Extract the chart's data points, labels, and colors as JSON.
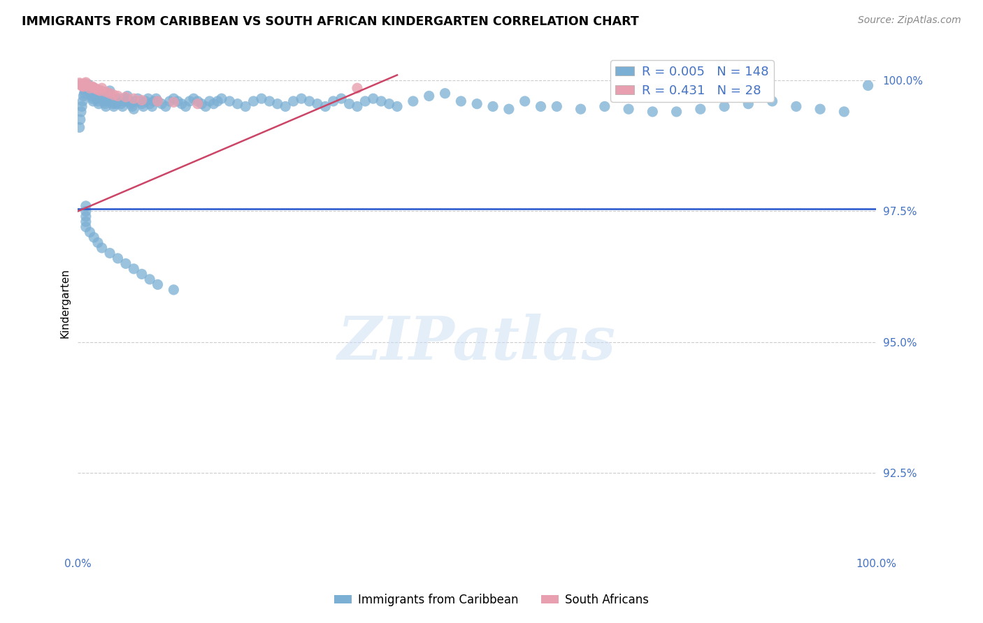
{
  "title": "IMMIGRANTS FROM CARIBBEAN VS SOUTH AFRICAN KINDERGARTEN CORRELATION CHART",
  "source": "Source: ZipAtlas.com",
  "ylabel": "Kindergarten",
  "xlim": [
    0.0,
    1.0
  ],
  "ylim": [
    0.91,
    1.005
  ],
  "yticks": [
    0.925,
    0.95,
    0.975,
    1.0
  ],
  "ytick_labels": [
    "92.5%",
    "95.0%",
    "97.5%",
    "100.0%"
  ],
  "xtick_vals": [
    0.0,
    0.2,
    0.4,
    0.6,
    0.8,
    1.0
  ],
  "xtick_labels": [
    "0.0%",
    "",
    "",
    "",
    "",
    "100.0%"
  ],
  "blue_R": 0.005,
  "blue_N": 148,
  "pink_R": 0.431,
  "pink_N": 28,
  "blue_hline_y": 0.9755,
  "blue_color": "#7bafd4",
  "pink_color": "#e8a0b0",
  "blue_trend_color": "#2255cc",
  "pink_trend_color": "#cc4466",
  "axis_color": "#4472c4",
  "grid_color": "#cccccc",
  "legend_label_blue": "Immigrants from Caribbean",
  "legend_label_pink": "South Africans",
  "watermark": "ZIPatlas",
  "title_fontsize": 12.5,
  "source_fontsize": 10,
  "tick_fontsize": 11,
  "ylabel_fontsize": 11,
  "scatter_size": 120,
  "blue_x": [
    0.002,
    0.003,
    0.004,
    0.005,
    0.006,
    0.007,
    0.008,
    0.009,
    0.01,
    0.011,
    0.012,
    0.013,
    0.014,
    0.015,
    0.016,
    0.017,
    0.018,
    0.019,
    0.02,
    0.021,
    0.022,
    0.023,
    0.024,
    0.025,
    0.026,
    0.027,
    0.028,
    0.029,
    0.03,
    0.031,
    0.032,
    0.033,
    0.034,
    0.035,
    0.036,
    0.037,
    0.038,
    0.039,
    0.04,
    0.041,
    0.042,
    0.043,
    0.044,
    0.045,
    0.046,
    0.047,
    0.048,
    0.05,
    0.052,
    0.054,
    0.056,
    0.058,
    0.06,
    0.062,
    0.064,
    0.066,
    0.068,
    0.07,
    0.072,
    0.075,
    0.078,
    0.08,
    0.082,
    0.085,
    0.088,
    0.09,
    0.093,
    0.095,
    0.098,
    0.1,
    0.105,
    0.11,
    0.115,
    0.12,
    0.125,
    0.13,
    0.135,
    0.14,
    0.145,
    0.15,
    0.155,
    0.16,
    0.165,
    0.17,
    0.175,
    0.18,
    0.19,
    0.2,
    0.21,
    0.22,
    0.23,
    0.24,
    0.25,
    0.26,
    0.27,
    0.28,
    0.29,
    0.3,
    0.31,
    0.32,
    0.33,
    0.34,
    0.35,
    0.36,
    0.37,
    0.38,
    0.39,
    0.4,
    0.42,
    0.44,
    0.46,
    0.48,
    0.5,
    0.52,
    0.54,
    0.56,
    0.58,
    0.6,
    0.63,
    0.66,
    0.69,
    0.72,
    0.75,
    0.78,
    0.81,
    0.84,
    0.87,
    0.9,
    0.93,
    0.96,
    0.99,
    0.01,
    0.01,
    0.01,
    0.01,
    0.01,
    0.015,
    0.02,
    0.025,
    0.03,
    0.04,
    0.05,
    0.06,
    0.07,
    0.08,
    0.09,
    0.1,
    0.12
  ],
  "blue_y": [
    0.991,
    0.9925,
    0.994,
    0.995,
    0.996,
    0.997,
    0.9975,
    0.998,
    0.9985,
    0.9988,
    0.999,
    0.9992,
    0.9985,
    0.998,
    0.9975,
    0.997,
    0.9965,
    0.996,
    0.9985,
    0.998,
    0.9975,
    0.997,
    0.9965,
    0.996,
    0.9955,
    0.997,
    0.9975,
    0.998,
    0.9975,
    0.997,
    0.9965,
    0.996,
    0.9955,
    0.995,
    0.996,
    0.9965,
    0.997,
    0.9975,
    0.998,
    0.997,
    0.9965,
    0.996,
    0.9955,
    0.995,
    0.996,
    0.9965,
    0.9955,
    0.996,
    0.9965,
    0.9955,
    0.995,
    0.996,
    0.9965,
    0.997,
    0.996,
    0.9955,
    0.995,
    0.9945,
    0.996,
    0.9965,
    0.996,
    0.9955,
    0.995,
    0.996,
    0.9965,
    0.9955,
    0.995,
    0.996,
    0.9965,
    0.996,
    0.9955,
    0.995,
    0.996,
    0.9965,
    0.996,
    0.9955,
    0.995,
    0.996,
    0.9965,
    0.996,
    0.9955,
    0.995,
    0.996,
    0.9955,
    0.996,
    0.9965,
    0.996,
    0.9955,
    0.995,
    0.996,
    0.9965,
    0.996,
    0.9955,
    0.995,
    0.996,
    0.9965,
    0.996,
    0.9955,
    0.995,
    0.996,
    0.9965,
    0.9955,
    0.995,
    0.996,
    0.9965,
    0.996,
    0.9955,
    0.995,
    0.996,
    0.997,
    0.9975,
    0.996,
    0.9955,
    0.995,
    0.9945,
    0.996,
    0.995,
    0.995,
    0.9945,
    0.995,
    0.9945,
    0.994,
    0.994,
    0.9945,
    0.995,
    0.9955,
    0.996,
    0.995,
    0.9945,
    0.994,
    0.999,
    0.976,
    0.975,
    0.974,
    0.973,
    0.972,
    0.971,
    0.97,
    0.969,
    0.968,
    0.967,
    0.966,
    0.965,
    0.964,
    0.963,
    0.962,
    0.961,
    0.96
  ],
  "pink_x": [
    0.002,
    0.003,
    0.004,
    0.005,
    0.006,
    0.007,
    0.008,
    0.009,
    0.01,
    0.012,
    0.015,
    0.018,
    0.02,
    0.022,
    0.025,
    0.028,
    0.03,
    0.035,
    0.04,
    0.045,
    0.05,
    0.06,
    0.07,
    0.08,
    0.1,
    0.12,
    0.15,
    0.35
  ],
  "pink_y": [
    0.9995,
    0.9993,
    0.9991,
    0.9989,
    0.999,
    0.9988,
    0.9992,
    0.9994,
    0.9996,
    0.999,
    0.9985,
    0.9988,
    0.9986,
    0.9984,
    0.9982,
    0.998,
    0.9985,
    0.9978,
    0.9975,
    0.9972,
    0.997,
    0.9968,
    0.9965,
    0.9962,
    0.996,
    0.9958,
    0.9955,
    0.9985
  ],
  "pink_trend_x": [
    0.0,
    0.4
  ],
  "pink_trend_y": [
    0.975,
    1.001
  ]
}
